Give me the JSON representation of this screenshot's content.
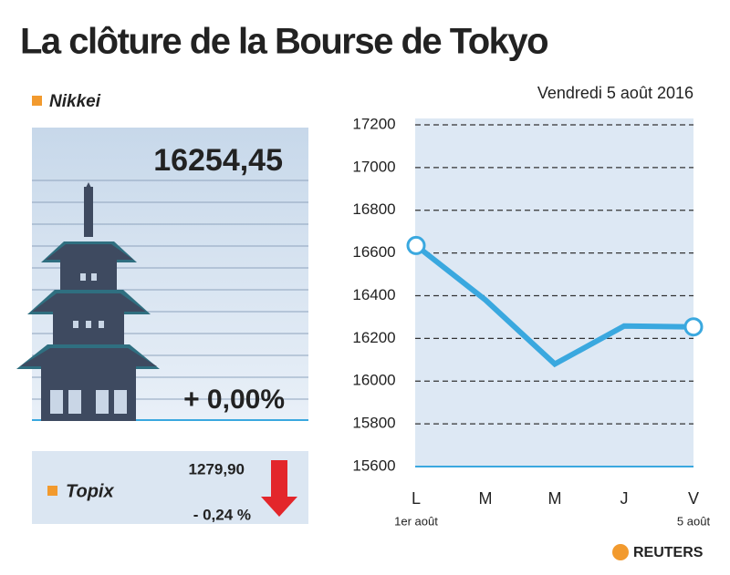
{
  "header": {
    "title": "La clôture de la Bourse de Tokyo",
    "date": "Vendredi 5 août 2016"
  },
  "nikkei": {
    "label": "Nikkei",
    "value": "16254,45",
    "change": "+ 0,00%"
  },
  "topix": {
    "label": "Topix",
    "value": "1279,90",
    "change": "- 0,24 %"
  },
  "source": "REUTERS",
  "chart_data": {
    "type": "line",
    "categories": [
      "L",
      "M",
      "M",
      "J",
      "V"
    ],
    "first_date_label": "1er août",
    "last_date_label": "5 août",
    "series": [
      {
        "name": "Nikkei",
        "color": "#3aa8df",
        "values": [
          16635,
          16380,
          16080,
          16258,
          16254
        ]
      }
    ],
    "ylim": [
      15600,
      17200
    ],
    "yticks": [
      15600,
      15800,
      16000,
      16200,
      16400,
      16600,
      16800,
      17000,
      17200
    ],
    "grid": true
  }
}
